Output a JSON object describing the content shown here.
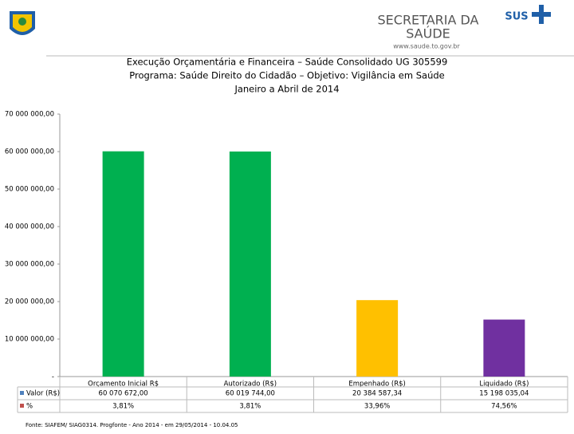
{
  "header": {
    "org_line1": "SECRETARIA DA",
    "org_line2": "SAÚDE",
    "url": "www.saude.to.gov.br",
    "sus": "SUS"
  },
  "chart_data": {
    "type": "bar",
    "title": [
      "Execução Orçamentária e Financeira –  Saúde Consolidado UG 305599",
      "Programa: Saúde Direito do Cidadão – Objetivo: Vigilância em Saúde",
      "Janeiro a Abril de 2014"
    ],
    "categories": [
      "Orçamento Inicial R$",
      "Autorizado (R$)",
      "Empenhado (R$)",
      "Liquidado (R$)"
    ],
    "series": [
      {
        "name": "Valor (R$)",
        "color": "#4f81bd",
        "bar_colors": [
          "#00b050",
          "#00b050",
          "#ffc000",
          "#7030a0"
        ],
        "values": [
          60070672.0,
          60019744.0,
          20384587.34,
          15198035.04
        ],
        "value_labels": [
          "60 070 672,00",
          "60 019 744,00",
          "20 384 587,34",
          "15 198 035,04"
        ]
      },
      {
        "name": "%",
        "color": "#c0504d",
        "values": [
          3.81,
          3.81,
          33.96,
          74.56
        ],
        "value_labels": [
          "3,81%",
          "3,81%",
          "33,96%",
          "74,56%"
        ]
      }
    ],
    "ylim": [
      0,
      70000000
    ],
    "yticks": [
      {
        "value": 0,
        "label": "-"
      },
      {
        "value": 10000000,
        "label": "10 000 000,00"
      },
      {
        "value": 20000000,
        "label": "20 000 000,00"
      },
      {
        "value": 30000000,
        "label": "30 000 000,00"
      },
      {
        "value": 40000000,
        "label": "40 000 000,00"
      },
      {
        "value": 50000000,
        "label": "50 000 000,00"
      },
      {
        "value": 60000000,
        "label": "60 000 000,00"
      },
      {
        "value": 70000000,
        "label": "70 000 000,00"
      }
    ],
    "data_table": true
  },
  "footer": "Fonte: SIAFEM/ SIAG0314. Progfonte - Ano 2014 - em 29/05/2014 - 10.04.05"
}
